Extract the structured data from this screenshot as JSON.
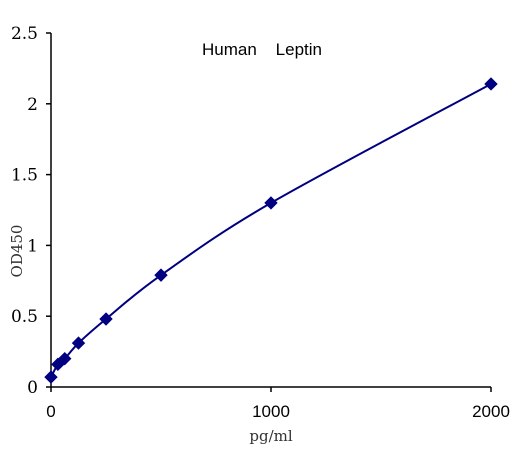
{
  "chart_data": {
    "type": "scatter",
    "title": "Human    Leptin",
    "xlabel": "pg/ml",
    "ylabel": "OD450",
    "xlim": [
      0,
      2000
    ],
    "ylim": [
      0,
      2.5
    ],
    "x_ticks": [
      0,
      1000,
      2000
    ],
    "x_tick_labels": [
      "0",
      "1000",
      "2000"
    ],
    "y_ticks": [
      0,
      0.5,
      1,
      1.5,
      2,
      2.5
    ],
    "y_tick_labels": [
      "0",
      "0.5",
      "1",
      "1.5",
      "2",
      "2.5"
    ],
    "grid": false,
    "series": [
      {
        "points": [
          {
            "x": 0,
            "y": 0.07
          },
          {
            "x": 31.25,
            "y": 0.16
          },
          {
            "x": 62.5,
            "y": 0.2
          },
          {
            "x": 125,
            "y": 0.31
          },
          {
            "x": 250,
            "y": 0.48
          },
          {
            "x": 500,
            "y": 0.79
          },
          {
            "x": 1000,
            "y": 1.3
          },
          {
            "x": 2000,
            "y": 2.14
          }
        ],
        "color": "#000080",
        "marker": "diamond",
        "fit_line": true
      }
    ]
  }
}
